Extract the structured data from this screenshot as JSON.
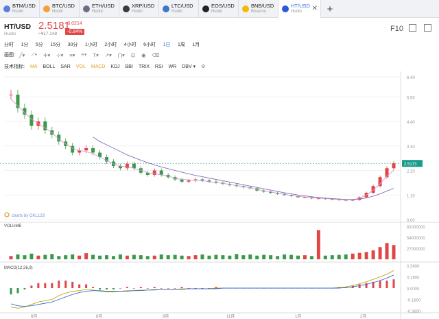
{
  "tabs": [
    {
      "symbol": "BTM/USD",
      "exchange": "Huobi",
      "color": "#5d7be0"
    },
    {
      "symbol": "BTC/USD",
      "exchange": "Huobi",
      "color": "#f2a13a"
    },
    {
      "symbol": "ETH/USD",
      "exchange": "Huobi",
      "color": "#6b6f86"
    },
    {
      "symbol": "XRP/USD",
      "exchange": "Huobi",
      "color": "#3a3a3a"
    },
    {
      "symbol": "LTC/USD",
      "exchange": "Huobi",
      "color": "#3d78c6"
    },
    {
      "symbol": "EOS/USD",
      "exchange": "Huobi",
      "color": "#222222"
    },
    {
      "symbol": "BNB/USD",
      "exchange": "Binance",
      "color": "#f0b90b"
    },
    {
      "symbol": "HT/USD",
      "exchange": "Huobi",
      "color": "#2a5ada",
      "active": true
    }
  ],
  "tab_close": "✕",
  "tab_add": "+",
  "header": {
    "pair": "HT/USD",
    "exchange": "Huobi",
    "price": "2.5181",
    "change": "-0.0214",
    "percent": "-0.84%",
    "cny": "≈¥17.148",
    "f10": "F10"
  },
  "timeframes": [
    "分时",
    "1分",
    "5分",
    "15分",
    "30分",
    "1小时",
    "2小时",
    "4小时",
    "6小时",
    "1日",
    "1周",
    "1月"
  ],
  "active_timeframe": "1日",
  "draw_label": "画图:",
  "indicator_label": "技术指标:",
  "indicators": [
    "MA",
    "BOLL",
    "SAR",
    "VOL",
    "MACD",
    "KDJ",
    "BBI",
    "TRIX",
    "RSI",
    "WR",
    "DBV ▾"
  ],
  "chart_data": {
    "type": "line",
    "price_axis": [
      "6.40",
      "5.50",
      "4.40",
      "3.30",
      "2.20",
      "1.10",
      "0.00"
    ],
    "price_min": 0,
    "price_max": 6.4,
    "last_price": "2.5173",
    "x_labels": [
      "6月",
      "8月",
      "9月",
      "11月",
      "1月",
      "2月"
    ],
    "watermark": "charts by GKL123",
    "close": [
      5.6,
      5.0,
      4.7,
      4.2,
      4.4,
      4.0,
      3.8,
      3.5,
      3.3,
      3.0,
      3.1,
      3.2,
      3.0,
      2.8,
      2.6,
      2.4,
      2.3,
      2.5,
      2.3,
      2.1,
      2.0,
      2.2,
      2.0,
      1.9,
      1.8,
      1.7,
      1.75,
      1.8,
      1.75,
      1.7,
      1.65,
      1.6,
      1.55,
      1.5,
      1.45,
      1.4,
      1.3,
      1.25,
      1.2,
      1.15,
      1.1,
      1.05,
      1.0,
      1.0,
      0.95,
      0.95,
      0.92,
      0.9,
      0.88,
      0.85,
      0.88,
      1.0,
      1.2,
      1.5,
      1.9,
      2.3,
      2.52
    ],
    "ma_fast": [
      5.4,
      5.1,
      4.8,
      4.5,
      4.3,
      4.1,
      3.9,
      3.6,
      3.4,
      3.2,
      3.1,
      3.05,
      2.95,
      2.8,
      2.65,
      2.5,
      2.4,
      2.35,
      2.3,
      2.2,
      2.1,
      2.05,
      2.0,
      1.95,
      1.85,
      1.8,
      1.78,
      1.76,
      1.74,
      1.7,
      1.66,
      1.62,
      1.58,
      1.52,
      1.47,
      1.42,
      1.35,
      1.29,
      1.24,
      1.18,
      1.13,
      1.08,
      1.04,
      1.01,
      0.98,
      0.96,
      0.94,
      0.92,
      0.9,
      0.88,
      0.89,
      0.96,
      1.1,
      1.32,
      1.6,
      1.95,
      2.2
    ],
    "ma_slow": [
      null,
      null,
      null,
      null,
      null,
      null,
      null,
      null,
      null,
      null,
      null,
      null,
      3.7,
      3.5,
      3.35,
      3.2,
      3.05,
      2.9,
      2.78,
      2.66,
      2.55,
      2.45,
      2.36,
      2.28,
      2.2,
      2.12,
      2.05,
      1.98,
      1.92,
      1.86,
      1.8,
      1.74,
      1.68,
      1.62,
      1.56,
      1.5,
      1.44,
      1.38,
      1.32,
      1.26,
      1.2,
      1.15,
      1.1,
      1.06,
      1.02,
      0.99,
      0.96,
      0.94,
      0.92,
      0.9,
      0.9,
      0.92,
      0.97,
      1.05,
      1.15,
      1.28,
      1.4
    ],
    "volume_label": "VOLUME",
    "volume_axis": [
      "81000000",
      "54000000",
      "27000000"
    ],
    "volume": [
      8,
      12,
      10,
      14,
      9,
      11,
      13,
      8,
      10,
      12,
      9,
      15,
      11,
      9,
      10,
      8,
      12,
      9,
      11,
      10,
      8,
      9,
      12,
      10,
      11,
      9,
      8,
      10,
      12,
      9,
      11,
      10,
      9,
      13,
      10,
      12,
      9,
      11,
      10,
      8,
      12,
      11,
      9,
      10,
      8,
      72,
      9,
      10,
      11,
      12,
      14,
      16,
      18,
      22,
      30,
      40,
      35
    ],
    "macd_label": "MACD(12,26,9)",
    "macd_axis": [
      "0.3600",
      "0.1800",
      "0.0000",
      "-0.1800",
      "-0.3600"
    ],
    "macd_dif": [
      -0.3,
      -0.32,
      -0.3,
      -0.26,
      -0.22,
      -0.2,
      -0.18,
      -0.12,
      -0.08,
      -0.05,
      -0.04,
      -0.02,
      -0.03,
      -0.05,
      -0.06,
      -0.06,
      -0.05,
      -0.04,
      -0.04,
      -0.03,
      -0.03,
      -0.02,
      -0.02,
      -0.02,
      -0.02,
      -0.01,
      -0.01,
      -0.01,
      -0.01,
      -0.01,
      0.0,
      0.0,
      0.0,
      0.0,
      0.0,
      0.0,
      0.0,
      0.0,
      0.0,
      0.0,
      0.0,
      0.0,
      0.0,
      0.0,
      0.0,
      0.0,
      0.0,
      0.0,
      0.01,
      0.02,
      0.04,
      0.07,
      0.1,
      0.14,
      0.18,
      0.22,
      0.28
    ],
    "macd_dea": [
      -0.25,
      -0.28,
      -0.29,
      -0.28,
      -0.26,
      -0.24,
      -0.22,
      -0.18,
      -0.14,
      -0.1,
      -0.07,
      -0.05,
      -0.04,
      -0.04,
      -0.05,
      -0.05,
      -0.05,
      -0.05,
      -0.04,
      -0.04,
      -0.03,
      -0.03,
      -0.02,
      -0.02,
      -0.02,
      -0.02,
      -0.01,
      -0.01,
      -0.01,
      -0.01,
      -0.01,
      0.0,
      0.0,
      0.0,
      0.0,
      0.0,
      0.0,
      0.0,
      0.0,
      0.0,
      0.0,
      0.0,
      0.0,
      0.0,
      0.0,
      0.0,
      0.0,
      0.0,
      0.0,
      0.01,
      0.02,
      0.04,
      0.06,
      0.09,
      0.12,
      0.16,
      0.21
    ]
  }
}
